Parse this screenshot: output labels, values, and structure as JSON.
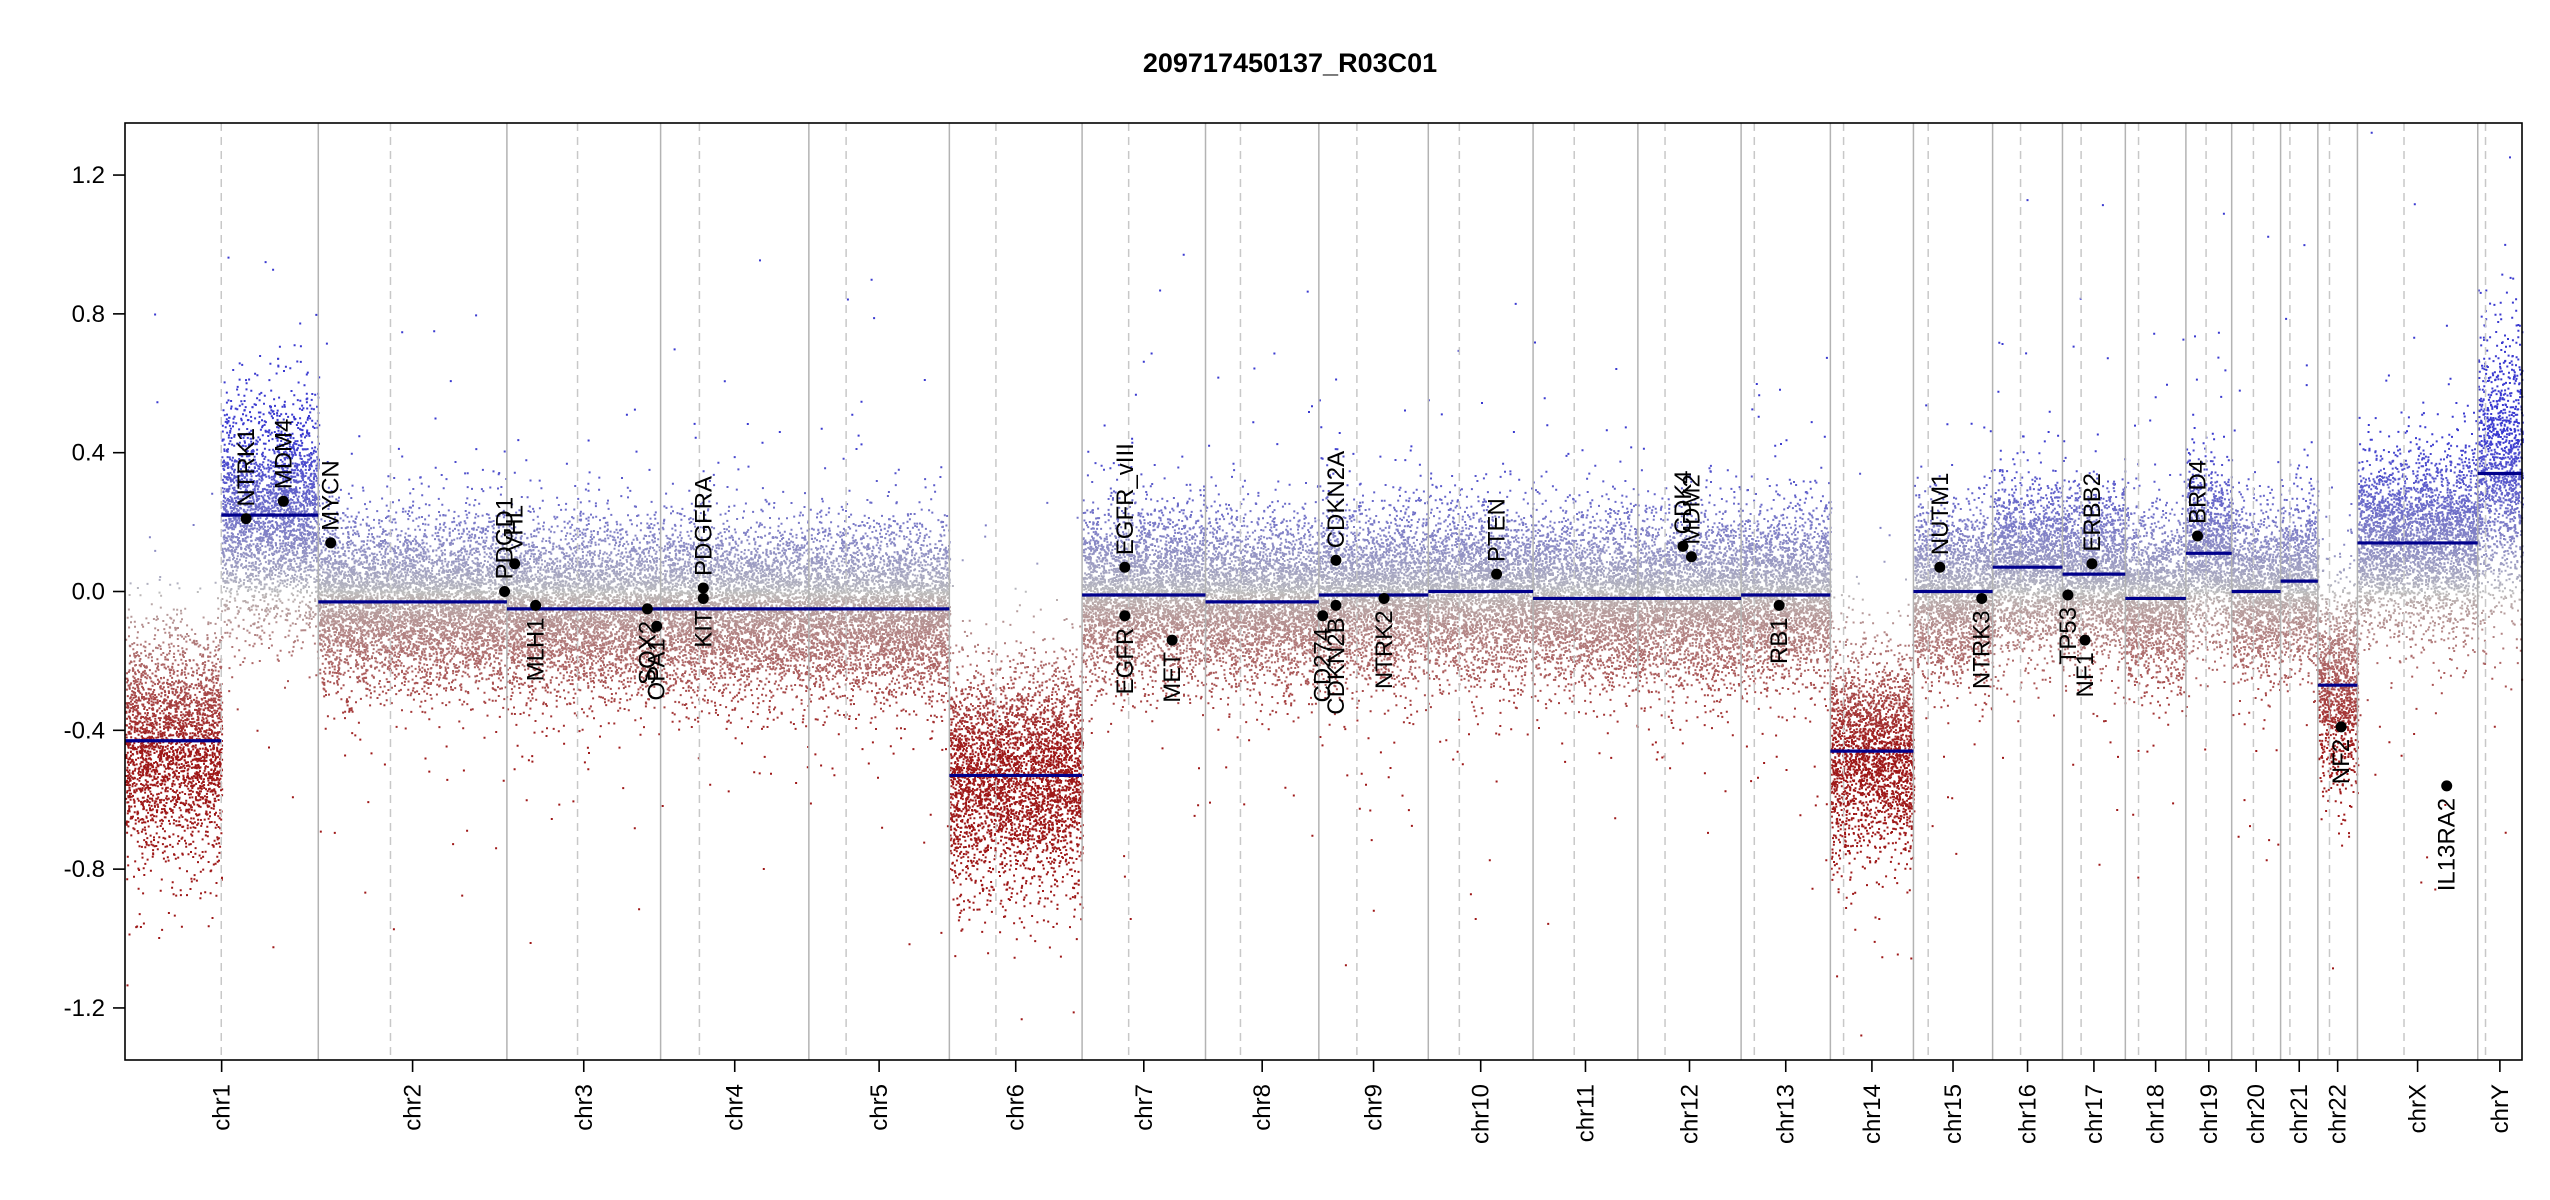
{
  "chart_data": {
    "type": "scatter",
    "title": "209717450137_R03C01",
    "xlabel": "",
    "ylabel": "",
    "ylim": [
      -1.35,
      1.35
    ],
    "yticks": [
      -1.2,
      -0.8,
      -0.4,
      0.0,
      0.4,
      0.8,
      1.2
    ],
    "ytick_labels": [
      "-1.2",
      "-0.8",
      "-0.4",
      "0.0",
      "0.4",
      "0.8",
      "1.2"
    ],
    "grid": false,
    "colors": {
      "segment": "#00008b",
      "gain": "#3a3ad0",
      "loss": "#9e1818",
      "neutral": "#bdbdbd",
      "chrom_line": "#b3b3b3",
      "centromere_line": "#c8c8c8",
      "gene_point": "#000000"
    },
    "x_unit": "Mb (cumulative genome position)",
    "chromosomes": [
      {
        "name": "chr1",
        "length": 249,
        "centromere": 124,
        "mean": -0.43,
        "spread": 0.16,
        "segments": [
          {
            "start": 0,
            "end": 124,
            "value": -0.43
          },
          {
            "start": 124,
            "end": 249,
            "value": 0.22
          }
        ]
      },
      {
        "name": "chr2",
        "length": 243,
        "centromere": 93,
        "mean": -0.03,
        "spread": 0.12,
        "segments": [
          {
            "start": 0,
            "end": 243,
            "value": -0.03
          }
        ]
      },
      {
        "name": "chr3",
        "length": 198,
        "centromere": 91,
        "mean": -0.05,
        "spread": 0.12,
        "segments": [
          {
            "start": 0,
            "end": 198,
            "value": -0.05
          }
        ]
      },
      {
        "name": "chr4",
        "length": 191,
        "centromere": 50,
        "mean": -0.05,
        "spread": 0.12,
        "segments": [
          {
            "start": 0,
            "end": 191,
            "value": -0.05
          }
        ]
      },
      {
        "name": "chr5",
        "length": 181,
        "centromere": 48,
        "mean": -0.05,
        "spread": 0.12,
        "segments": [
          {
            "start": 0,
            "end": 181,
            "value": -0.05
          }
        ]
      },
      {
        "name": "chr6",
        "length": 171,
        "centromere": 60,
        "mean": -0.53,
        "spread": 0.16,
        "segments": [
          {
            "start": 0,
            "end": 171,
            "value": -0.53
          }
        ]
      },
      {
        "name": "chr7",
        "length": 159,
        "centromere": 60,
        "mean": -0.01,
        "spread": 0.12,
        "segments": [
          {
            "start": 0,
            "end": 159,
            "value": -0.01
          }
        ]
      },
      {
        "name": "chr8",
        "length": 146,
        "centromere": 45,
        "mean": -0.03,
        "spread": 0.12,
        "segments": [
          {
            "start": 0,
            "end": 146,
            "value": -0.03
          }
        ]
      },
      {
        "name": "chr9",
        "length": 141,
        "centromere": 49,
        "mean": -0.01,
        "spread": 0.12,
        "segments": [
          {
            "start": 0,
            "end": 141,
            "value": -0.01
          }
        ]
      },
      {
        "name": "chr10",
        "length": 135,
        "centromere": 40,
        "mean": 0.0,
        "spread": 0.12,
        "segments": [
          {
            "start": 0,
            "end": 135,
            "value": 0.0
          }
        ]
      },
      {
        "name": "chr11",
        "length": 135,
        "centromere": 53,
        "mean": -0.02,
        "spread": 0.12,
        "segments": [
          {
            "start": 0,
            "end": 135,
            "value": -0.02
          }
        ]
      },
      {
        "name": "chr12",
        "length": 133,
        "centromere": 35,
        "mean": -0.02,
        "spread": 0.12,
        "segments": [
          {
            "start": 0,
            "end": 133,
            "value": -0.02
          }
        ]
      },
      {
        "name": "chr13",
        "length": 115,
        "centromere": 17,
        "mean": -0.01,
        "spread": 0.12,
        "segments": [
          {
            "start": 0,
            "end": 115,
            "value": -0.01
          }
        ]
      },
      {
        "name": "chr14",
        "length": 107,
        "centromere": 17,
        "mean": -0.46,
        "spread": 0.15,
        "segments": [
          {
            "start": 0,
            "end": 107,
            "value": -0.46
          }
        ]
      },
      {
        "name": "chr15",
        "length": 102,
        "centromere": 19,
        "mean": 0.0,
        "spread": 0.12,
        "segments": [
          {
            "start": 0,
            "end": 102,
            "value": 0.0
          }
        ]
      },
      {
        "name": "chr16",
        "length": 90,
        "centromere": 36,
        "mean": 0.07,
        "spread": 0.12,
        "segments": [
          {
            "start": 0,
            "end": 90,
            "value": 0.07
          }
        ]
      },
      {
        "name": "chr17",
        "length": 81,
        "centromere": 24,
        "mean": 0.05,
        "spread": 0.12,
        "segments": [
          {
            "start": 0,
            "end": 81,
            "value": 0.05
          }
        ]
      },
      {
        "name": "chr18",
        "length": 78,
        "centromere": 17,
        "mean": -0.02,
        "spread": 0.12,
        "segments": [
          {
            "start": 0,
            "end": 78,
            "value": -0.02
          }
        ]
      },
      {
        "name": "chr19",
        "length": 59,
        "centromere": 26,
        "mean": 0.11,
        "spread": 0.12,
        "segments": [
          {
            "start": 0,
            "end": 59,
            "value": 0.11
          }
        ]
      },
      {
        "name": "chr20",
        "length": 63,
        "centromere": 28,
        "mean": 0.0,
        "spread": 0.12,
        "segments": [
          {
            "start": 0,
            "end": 63,
            "value": 0.0
          }
        ]
      },
      {
        "name": "chr21",
        "length": 48,
        "centromere": 12,
        "mean": 0.03,
        "spread": 0.12,
        "segments": [
          {
            "start": 0,
            "end": 48,
            "value": 0.03
          }
        ]
      },
      {
        "name": "chr22",
        "length": 51,
        "centromere": 15,
        "mean": -0.27,
        "spread": 0.15,
        "segments": [
          {
            "start": 0,
            "end": 51,
            "value": -0.27
          }
        ]
      },
      {
        "name": "chrX",
        "length": 155,
        "centromere": 60,
        "mean": 0.14,
        "spread": 0.13,
        "segments": [
          {
            "start": 0,
            "end": 155,
            "value": 0.14
          }
        ]
      },
      {
        "name": "chrY",
        "length": 57,
        "centromere": 10,
        "mean": 0.34,
        "spread": 0.2,
        "segments": [
          {
            "start": 0,
            "end": 57,
            "value": 0.34
          }
        ]
      }
    ],
    "genes": [
      {
        "name": "NTRK1",
        "chrom": "chr1",
        "pos": 156,
        "value": 0.21,
        "label": "above"
      },
      {
        "name": "MDM4",
        "chrom": "chr1",
        "pos": 204,
        "value": 0.26,
        "label": "above"
      },
      {
        "name": "MYCN",
        "chrom": "chr2",
        "pos": 16,
        "value": 0.14,
        "label": "above"
      },
      {
        "name": "PDGD1",
        "chrom": "chr2",
        "pos": 240,
        "value": 0.0,
        "label": "above"
      },
      {
        "name": "VHL",
        "chrom": "chr3",
        "pos": 10,
        "value": 0.08,
        "label": "above"
      },
      {
        "name": "MLH1",
        "chrom": "chr3",
        "pos": 37,
        "value": -0.04,
        "label": "below"
      },
      {
        "name": "SOX2",
        "chrom": "chr3",
        "pos": 181,
        "value": -0.05,
        "label": "below"
      },
      {
        "name": "OPA1",
        "chrom": "chr3",
        "pos": 193,
        "value": -0.1,
        "label": "below"
      },
      {
        "name": "PDGFRA",
        "chrom": "chr4",
        "pos": 55,
        "value": 0.01,
        "label": "above"
      },
      {
        "name": "KIT",
        "chrom": "chr4",
        "pos": 55,
        "value": -0.02,
        "label": "below"
      },
      {
        "name": "EGFR_vIII",
        "chrom": "chr7",
        "pos": 55,
        "value": 0.07,
        "label": "above"
      },
      {
        "name": "EGFR",
        "chrom": "chr7",
        "pos": 55,
        "value": -0.07,
        "label": "below"
      },
      {
        "name": "MET",
        "chrom": "chr7",
        "pos": 116,
        "value": -0.14,
        "label": "below"
      },
      {
        "name": "CDKN2A",
        "chrom": "chr9",
        "pos": 22,
        "value": 0.09,
        "label": "above"
      },
      {
        "name": "CD274",
        "chrom": "chr9",
        "pos": 5,
        "value": -0.07,
        "label": "below"
      },
      {
        "name": "CDKN2B",
        "chrom": "chr9",
        "pos": 22,
        "value": -0.04,
        "label": "below"
      },
      {
        "name": "NTRK2",
        "chrom": "chr9",
        "pos": 84,
        "value": -0.02,
        "label": "below"
      },
      {
        "name": "PTEN",
        "chrom": "chr10",
        "pos": 88,
        "value": 0.05,
        "label": "above"
      },
      {
        "name": "CDK4",
        "chrom": "chr12",
        "pos": 58,
        "value": 0.13,
        "label": "above"
      },
      {
        "name": "MDM2",
        "chrom": "chr12",
        "pos": 69,
        "value": 0.1,
        "label": "above"
      },
      {
        "name": "RB1",
        "chrom": "chr13",
        "pos": 49,
        "value": -0.04,
        "label": "below"
      },
      {
        "name": "NUTM1",
        "chrom": "chr15",
        "pos": 34,
        "value": 0.07,
        "label": "above"
      },
      {
        "name": "NTRK3",
        "chrom": "chr15",
        "pos": 88,
        "value": -0.02,
        "label": "below"
      },
      {
        "name": "TP53",
        "chrom": "chr17",
        "pos": 7,
        "value": -0.01,
        "label": "below"
      },
      {
        "name": "NF1",
        "chrom": "chr17",
        "pos": 29,
        "value": -0.14,
        "label": "below"
      },
      {
        "name": "ERBB2",
        "chrom": "chr17",
        "pos": 38,
        "value": 0.08,
        "label": "above"
      },
      {
        "name": "BRD4",
        "chrom": "chr19",
        "pos": 15,
        "value": 0.16,
        "label": "above"
      },
      {
        "name": "NF2",
        "chrom": "chr22",
        "pos": 30,
        "value": -0.39,
        "label": "below"
      },
      {
        "name": "IL13RA2",
        "chrom": "chrX",
        "pos": 115,
        "value": -0.56,
        "label": "below"
      }
    ]
  }
}
